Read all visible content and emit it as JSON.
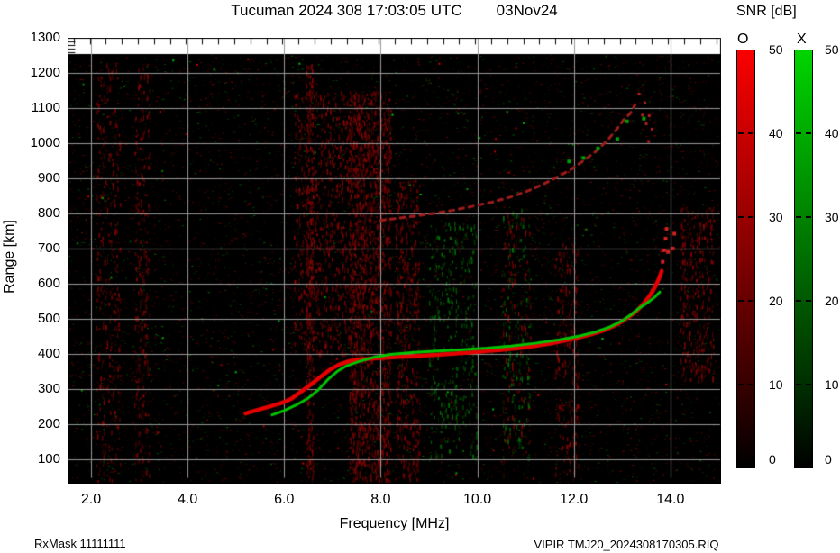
{
  "title": {
    "main": "Tucuman 2024 308 17:03:05 UTC",
    "date": "03Nov24"
  },
  "footer": {
    "left": "RxMask 11111111",
    "right": "VIPIR  TMJ20_2024308170305.RIQ"
  },
  "axes": {
    "xlabel": "Frequency [MHz]",
    "ylabel": "Range [km]",
    "xtick_labels": [
      "2.0",
      "4.0",
      "6.0",
      "8.0",
      "10.0",
      "12.0",
      "14.0"
    ],
    "xtick_values": [
      2,
      4,
      6,
      8,
      10,
      12,
      14
    ],
    "ytick_values": [
      100,
      200,
      300,
      400,
      500,
      600,
      700,
      800,
      900,
      1000,
      1100,
      1200,
      1300
    ]
  },
  "colorbar": {
    "title": "SNR [dB]",
    "o_label": "O",
    "x_label": "X",
    "ticks": [
      50,
      40,
      30,
      20,
      10,
      0
    ],
    "min": 0,
    "max": 50,
    "o_top_color": "#fa0000",
    "x_top_color": "#00d400",
    "bottom_color": "#000000"
  },
  "chart_data": {
    "type": "scatter",
    "title": "Tucuman 2024 308 17:03:05 UTC 03Nov24",
    "xlabel": "Frequency [MHz]",
    "ylabel": "Range [km]",
    "xlim": [
      1.5,
      15.05
    ],
    "ylim": [
      30,
      1300
    ],
    "grid": true,
    "grid_color": "#989898",
    "background": "#000000",
    "legend_position": "right-colorbars",
    "series": [
      {
        "name": "O-mode F-layer trace",
        "color": "#e60000",
        "width": 4.5,
        "points": [
          [
            5.2,
            230
          ],
          [
            5.45,
            240
          ],
          [
            5.7,
            250
          ],
          [
            5.95,
            260
          ],
          [
            6.15,
            272
          ],
          [
            6.35,
            292
          ],
          [
            6.55,
            312
          ],
          [
            6.75,
            334
          ],
          [
            6.95,
            355
          ],
          [
            7.15,
            370
          ],
          [
            7.35,
            379
          ],
          [
            7.6,
            384
          ],
          [
            8.0,
            388
          ],
          [
            8.5,
            392
          ],
          [
            9.0,
            396
          ],
          [
            9.5,
            400
          ],
          [
            10.0,
            405
          ],
          [
            10.5,
            411
          ],
          [
            11.0,
            418
          ],
          [
            11.5,
            429
          ],
          [
            12.0,
            443
          ],
          [
            12.35,
            455
          ],
          [
            12.65,
            468
          ],
          [
            12.9,
            484
          ],
          [
            13.1,
            501
          ],
          [
            13.3,
            522
          ],
          [
            13.45,
            544
          ],
          [
            13.58,
            567
          ],
          [
            13.68,
            590
          ],
          [
            13.76,
            613
          ],
          [
            13.82,
            636
          ]
        ]
      },
      {
        "name": "X-mode F-layer trace",
        "color": "#00c400",
        "width": 3,
        "points": [
          [
            5.75,
            226
          ],
          [
            6.0,
            238
          ],
          [
            6.25,
            254
          ],
          [
            6.5,
            274
          ],
          [
            6.7,
            296
          ],
          [
            6.9,
            326
          ],
          [
            7.1,
            350
          ],
          [
            7.3,
            366
          ],
          [
            7.55,
            378
          ],
          [
            7.85,
            390
          ],
          [
            8.2,
            398
          ],
          [
            8.7,
            404
          ],
          [
            9.2,
            408
          ],
          [
            9.7,
            412
          ],
          [
            10.2,
            416
          ],
          [
            10.7,
            422
          ],
          [
            11.2,
            430
          ],
          [
            11.7,
            440
          ],
          [
            12.1,
            450
          ],
          [
            12.45,
            462
          ],
          [
            12.75,
            477
          ],
          [
            13.0,
            494
          ],
          [
            13.2,
            513
          ],
          [
            13.35,
            530
          ],
          [
            13.55,
            548
          ],
          [
            13.68,
            562
          ],
          [
            13.78,
            576
          ]
        ]
      },
      {
        "name": "O-mode second hop trace",
        "color": "#9e1c1c",
        "width": 3,
        "dash": [
          5,
          6
        ],
        "points": [
          [
            8.0,
            780
          ],
          [
            8.35,
            786
          ],
          [
            8.7,
            792
          ],
          [
            9.1,
            800
          ],
          [
            9.5,
            809
          ],
          [
            9.9,
            820
          ],
          [
            10.3,
            832
          ],
          [
            10.7,
            847
          ],
          [
            11.05,
            864
          ],
          [
            11.35,
            882
          ],
          [
            11.65,
            903
          ],
          [
            11.95,
            926
          ],
          [
            12.2,
            950
          ],
          [
            12.45,
            976
          ],
          [
            12.68,
            1006
          ],
          [
            12.88,
            1038
          ],
          [
            13.05,
            1070
          ],
          [
            13.17,
            1085
          ],
          [
            13.27,
            1110
          ]
        ]
      }
    ],
    "scatter_dots": [
      {
        "name": "O-mode spread dots",
        "color": "#d42222",
        "size": 4,
        "points": [
          [
            13.84,
            662
          ],
          [
            13.87,
            695
          ],
          [
            13.9,
            728
          ],
          [
            13.92,
            756
          ],
          [
            14.05,
            700
          ],
          [
            14.08,
            742
          ],
          [
            13.95,
            690
          ]
        ]
      },
      {
        "name": "second hop spread dots",
        "color": "#b42020",
        "size": 3,
        "points": [
          [
            13.35,
            1140
          ],
          [
            13.42,
            1080
          ],
          [
            13.5,
            1055
          ],
          [
            13.56,
            1078
          ],
          [
            13.62,
            1040
          ],
          [
            13.47,
            1115
          ],
          [
            13.55,
            1005
          ]
        ]
      },
      {
        "name": "second hop X specks",
        "color": "#00a000",
        "size": 4,
        "points": [
          [
            11.9,
            948
          ],
          [
            12.5,
            985
          ],
          [
            12.9,
            1012
          ],
          [
            13.1,
            1062
          ],
          [
            12.2,
            958
          ],
          [
            13.45,
            1070
          ]
        ]
      }
    ],
    "noise_bands": [
      {
        "f0": 2.1,
        "f1": 2.6,
        "r0": 40,
        "r1": 1230,
        "c": "red",
        "n": 320
      },
      {
        "f0": 2.9,
        "f1": 3.2,
        "r0": 40,
        "r1": 1230,
        "c": "red",
        "n": 280
      },
      {
        "f0": 6.45,
        "f1": 6.6,
        "r0": 40,
        "r1": 1230,
        "c": "red",
        "n": 320
      },
      {
        "f0": 6.2,
        "f1": 7.4,
        "r0": 400,
        "r1": 1150,
        "c": "red",
        "n": 700
      },
      {
        "f0": 7.35,
        "f1": 8.2,
        "r0": 40,
        "r1": 1150,
        "c": "red",
        "n": 1700
      },
      {
        "f0": 8.3,
        "f1": 8.8,
        "r0": 40,
        "r1": 900,
        "c": "red",
        "n": 450
      },
      {
        "f0": 9.0,
        "f1": 10.0,
        "r0": 100,
        "r1": 780,
        "c": "green",
        "n": 330
      },
      {
        "f0": 10.5,
        "f1": 11.1,
        "r0": 100,
        "r1": 820,
        "c": "mix",
        "n": 300
      },
      {
        "f0": 11.6,
        "f1": 12.1,
        "r0": 60,
        "r1": 720,
        "c": "red",
        "n": 240
      },
      {
        "f0": 14.2,
        "f1": 14.9,
        "r0": 330,
        "r1": 820,
        "c": "red",
        "n": 320
      }
    ]
  }
}
